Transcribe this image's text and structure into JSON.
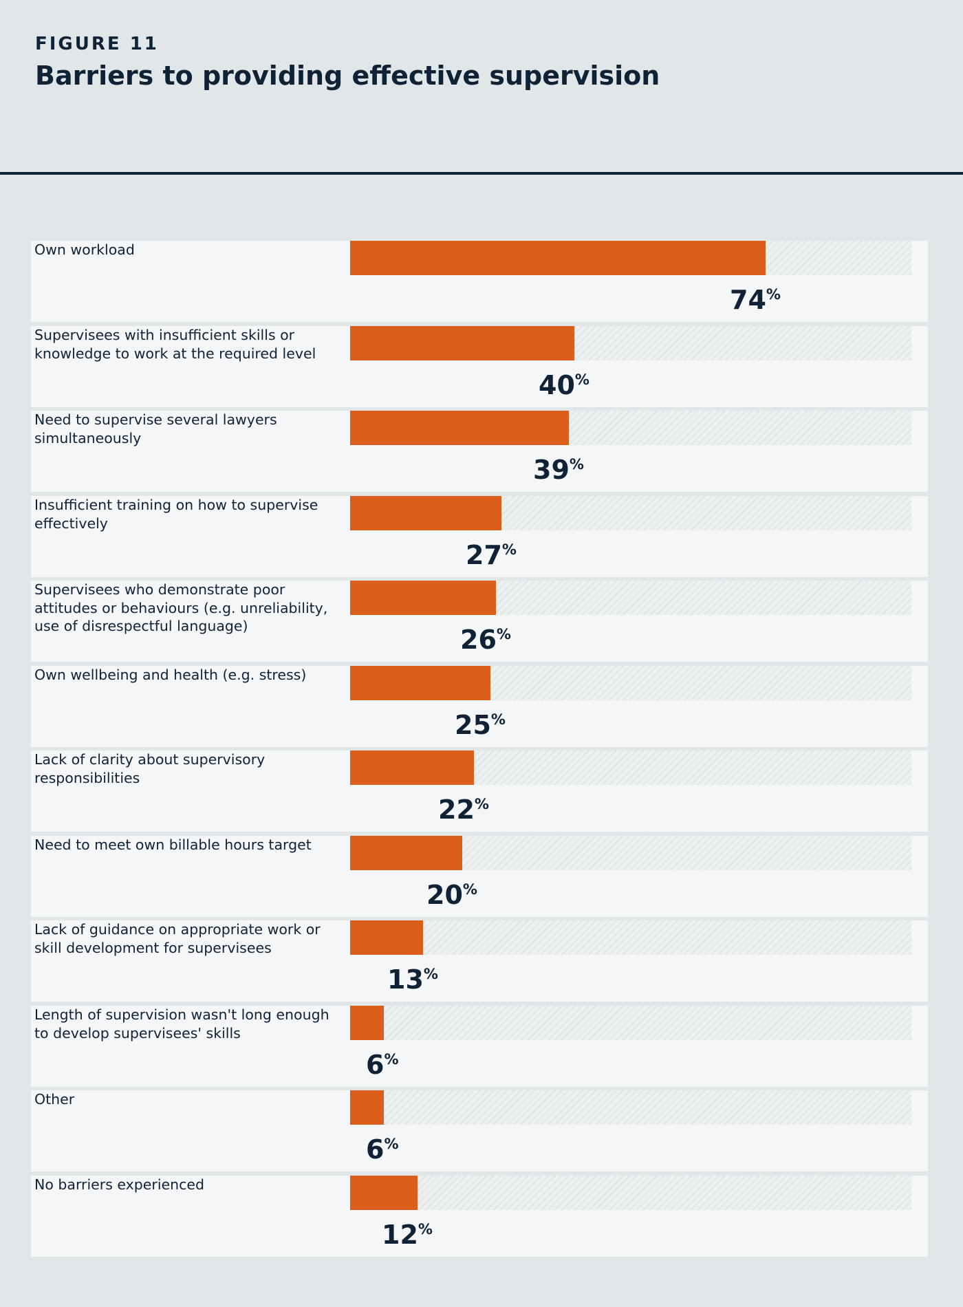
{
  "figure_label": "FIGURE 11",
  "colors": {
    "background": "#e1e6e9",
    "row_background": "#f4f6f7",
    "bar": "#dc5e1b",
    "text": "#0f2236",
    "track_hatch": "#dde2e4"
  },
  "chart_data": {
    "type": "bar",
    "orientation": "horizontal",
    "title": "Barriers to providing effective supervision",
    "unit": "%",
    "xlim": [
      0,
      100
    ],
    "grid": false,
    "categories": [
      "Own workload",
      "Supervisees with insufficient skills or knowledge to work at the required level",
      "Need to supervise several lawyers simultaneously",
      "Insufficient training on how to supervise effectively",
      "Supervisees who demonstrate poor attitudes or behaviours (e.g. unreliability, use of disrespectful language)",
      "Own wellbeing and health (e.g. stress)",
      "Lack of clarity about supervisory responsibilities",
      "Need to meet own billable hours target",
      "Lack of guidance on appropriate work or skill development for supervisees",
      "Length of supervision wasn't long enough to develop supervisees' skills",
      "Other",
      "No barriers experienced"
    ],
    "values": [
      74,
      40,
      39,
      27,
      26,
      25,
      22,
      20,
      13,
      6,
      6,
      12
    ]
  }
}
